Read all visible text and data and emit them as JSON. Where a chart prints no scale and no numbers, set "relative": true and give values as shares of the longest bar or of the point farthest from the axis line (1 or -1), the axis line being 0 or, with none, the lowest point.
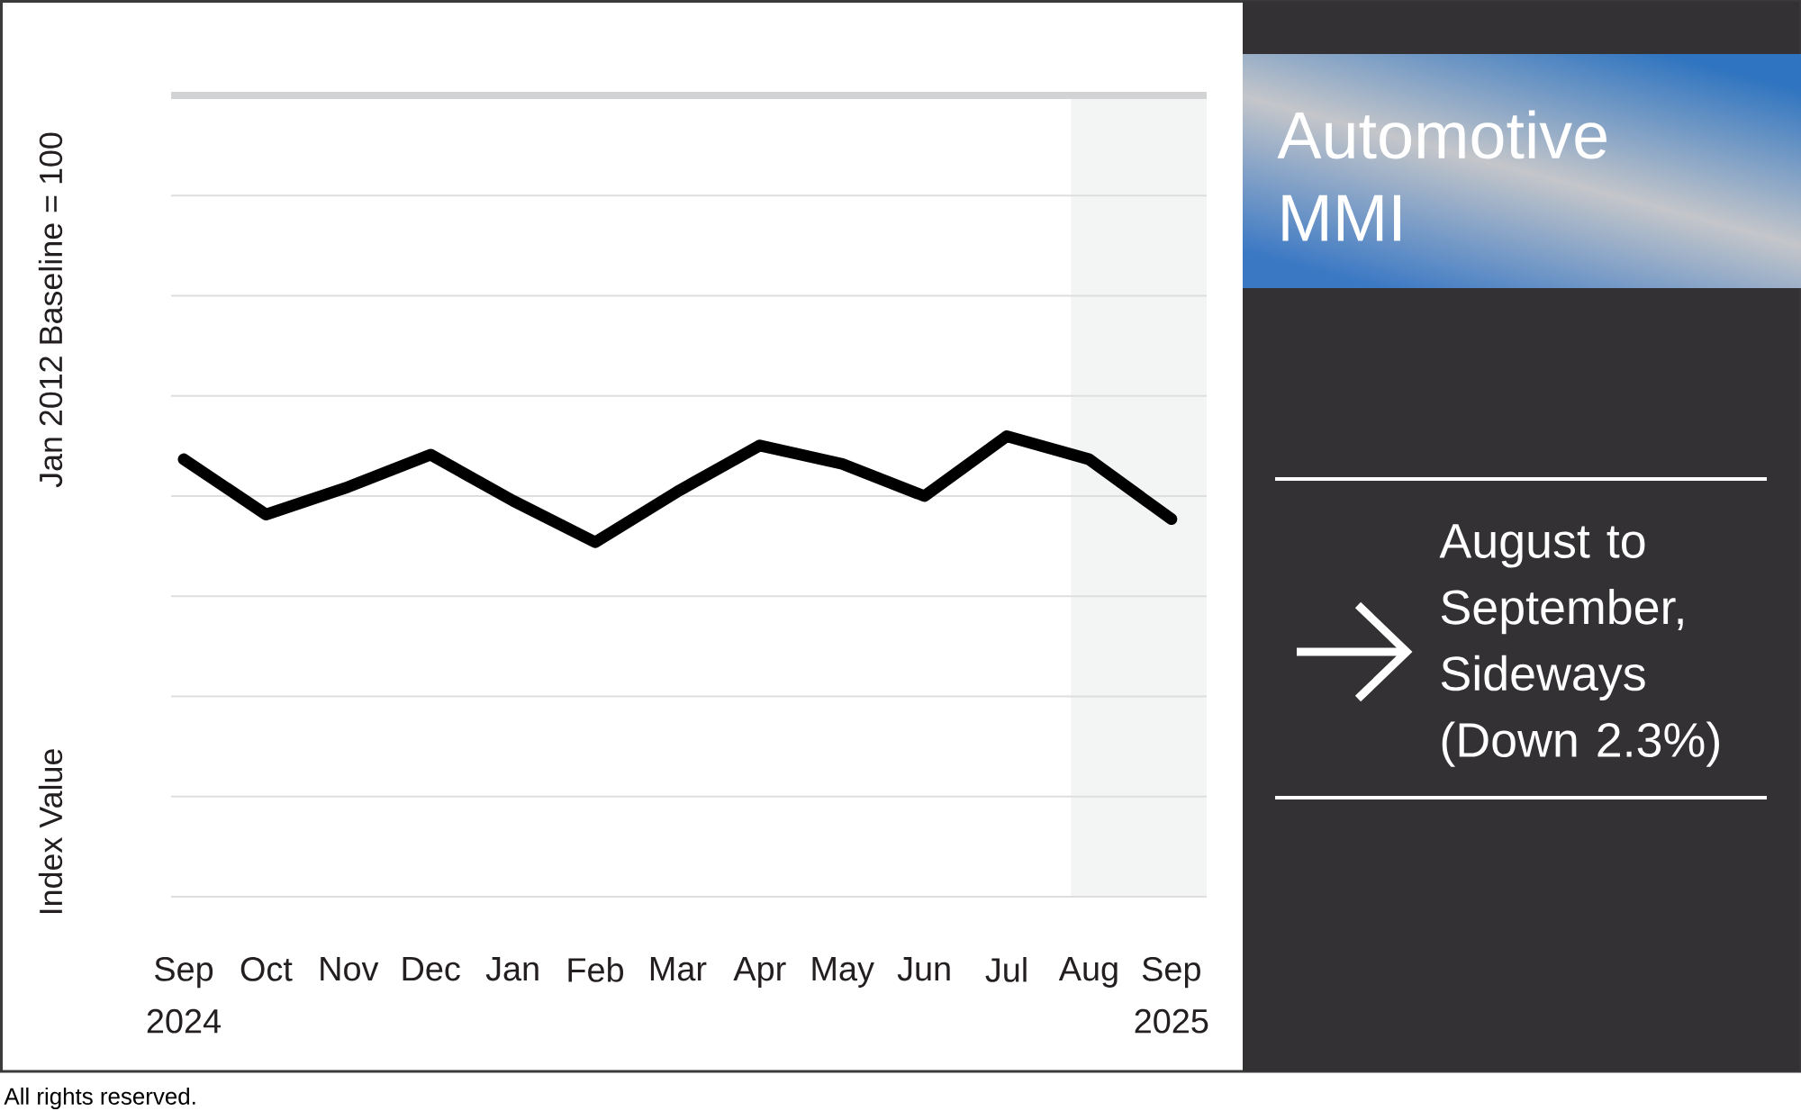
{
  "chart_data": {
    "type": "line",
    "title": "Automotive MMI",
    "ylabel": "Index Value",
    "annotations": [
      "Jan 2012 Baseline = 100",
      "August to September, Sideways (Down 2.3%)",
      "All rights reserved."
    ],
    "categories": [
      "Sep 2024",
      "Oct",
      "Nov",
      "Dec",
      "Jan",
      "Feb",
      "Mar",
      "Apr",
      "May",
      "Jun",
      "Jul",
      "Aug",
      "Sep 2025"
    ],
    "series": [
      {
        "color": "#000000",
        "values": [
          0.95,
          0.83,
          0.89,
          0.96,
          0.86,
          0.77,
          0.88,
          0.98,
          0.94,
          0.87,
          1,
          0.95,
          0.82
        ]
      }
    ],
    "relative": true,
    "grid": "y",
    "bands": [
      {
        "axis": "x",
        "from": "Aug",
        "to": "Sep 2025",
        "color": "#f3f5f4"
      }
    ]
  }
}
